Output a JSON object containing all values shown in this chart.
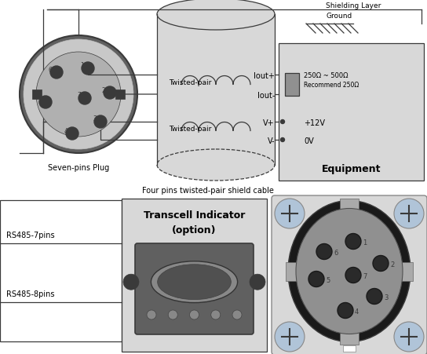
{
  "bg_color": "#ffffff",
  "dark_gray": "#3a3a3a",
  "med_gray": "#888888",
  "light_gray": "#c8c8c8",
  "light_gray2": "#d8d8d8",
  "black": "#000000",
  "labels": {
    "seven_pins": "Seven-pins Plug",
    "four_pins": "Four pins twisted-pair shield cable",
    "twisted_pair1": "Twisted-pair",
    "twisted_pair2": "Twisted-pair",
    "iout_plus": "Iout+",
    "iout_minus": "Iout-",
    "vplus": "V+",
    "vminus": "V-",
    "plus12v": "+12V",
    "zero_v": "0V",
    "equipment": "Equipment",
    "shielding": "Shielding Layer",
    "ground": "Ground",
    "resistor": "250Ω ~ 500Ω",
    "recommend": "Recommend 250Ω",
    "transcell": "Transcell Indicator",
    "option": "(option)",
    "rs485_7": "RS485-7pins",
    "rs485_8": "RS485-8pins"
  }
}
